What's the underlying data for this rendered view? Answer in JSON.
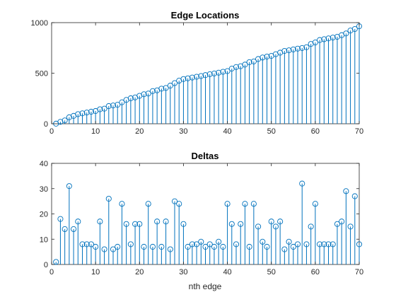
{
  "colors": {
    "series": "#0072bd",
    "axis": "#262626"
  },
  "chart_data": [
    {
      "type": "stem",
      "title": "Edge Locations",
      "xlabel": "",
      "ylabel": "",
      "xlim": [
        0,
        70
      ],
      "ylim": [
        0,
        1000
      ],
      "xticks": [
        0,
        10,
        20,
        30,
        40,
        50,
        60,
        70
      ],
      "yticks": [
        0,
        500,
        1000
      ],
      "grid": false,
      "x": [
        1,
        2,
        3,
        4,
        5,
        6,
        7,
        8,
        9,
        10,
        11,
        12,
        13,
        14,
        15,
        16,
        17,
        18,
        19,
        20,
        21,
        22,
        23,
        24,
        25,
        26,
        27,
        28,
        29,
        30,
        31,
        32,
        33,
        34,
        35,
        36,
        37,
        38,
        39,
        40,
        41,
        42,
        43,
        44,
        45,
        46,
        47,
        48,
        49,
        50,
        51,
        52,
        53,
        54,
        55,
        56,
        57,
        58,
        59,
        60,
        61,
        62,
        63,
        64,
        65,
        66,
        67,
        68,
        69,
        70
      ],
      "y": [
        1,
        19,
        33,
        64,
        78,
        95,
        103,
        111,
        119,
        126,
        143,
        149,
        175,
        181,
        188,
        212,
        236,
        252,
        260,
        276,
        292,
        299,
        323,
        330,
        347,
        354,
        377,
        402,
        426,
        442,
        449,
        457,
        465,
        472,
        481,
        490,
        497,
        505,
        514,
        521,
        545,
        561,
        569,
        585,
        609,
        616,
        640,
        655,
        664,
        671,
        688,
        703,
        720,
        726,
        735,
        743,
        749,
        757,
        789,
        804,
        828,
        836,
        844,
        852,
        860,
        876,
        893,
        922,
        937,
        964
      ]
    },
    {
      "type": "stem",
      "title": "Deltas",
      "xlabel": "nth edge",
      "ylabel": "",
      "xlim": [
        0,
        70
      ],
      "ylim": [
        0,
        40
      ],
      "xticks": [
        0,
        10,
        20,
        30,
        40,
        50,
        60,
        70
      ],
      "yticks": [
        0,
        10,
        20,
        30,
        40
      ],
      "grid": false,
      "x": [
        1,
        2,
        3,
        4,
        5,
        6,
        7,
        8,
        9,
        10,
        11,
        12,
        13,
        14,
        15,
        16,
        17,
        18,
        19,
        20,
        21,
        22,
        23,
        24,
        25,
        26,
        27,
        28,
        29,
        30,
        31,
        32,
        33,
        34,
        35,
        36,
        37,
        38,
        39,
        40,
        41,
        42,
        43,
        44,
        45,
        46,
        47,
        48,
        49,
        50,
        51,
        52,
        53,
        54,
        55,
        56,
        57,
        58,
        59,
        60,
        61,
        62,
        63,
        64,
        65,
        66,
        67,
        68,
        69,
        70
      ],
      "y": [
        1,
        18,
        14,
        31,
        14,
        17,
        8,
        8,
        8,
        7,
        17,
        6,
        26,
        6,
        7,
        24,
        16,
        8,
        16,
        16,
        7,
        24,
        7,
        17,
        7,
        17,
        6,
        25,
        24,
        16,
        7,
        8,
        8,
        9,
        7,
        8,
        7,
        9,
        7,
        24,
        16,
        8,
        16,
        24,
        7,
        24,
        15,
        9,
        7,
        17,
        15,
        17,
        6,
        9,
        7,
        8,
        32,
        8,
        15,
        24,
        8,
        8,
        8,
        8,
        16,
        17,
        29,
        15,
        27,
        8
      ]
    }
  ]
}
